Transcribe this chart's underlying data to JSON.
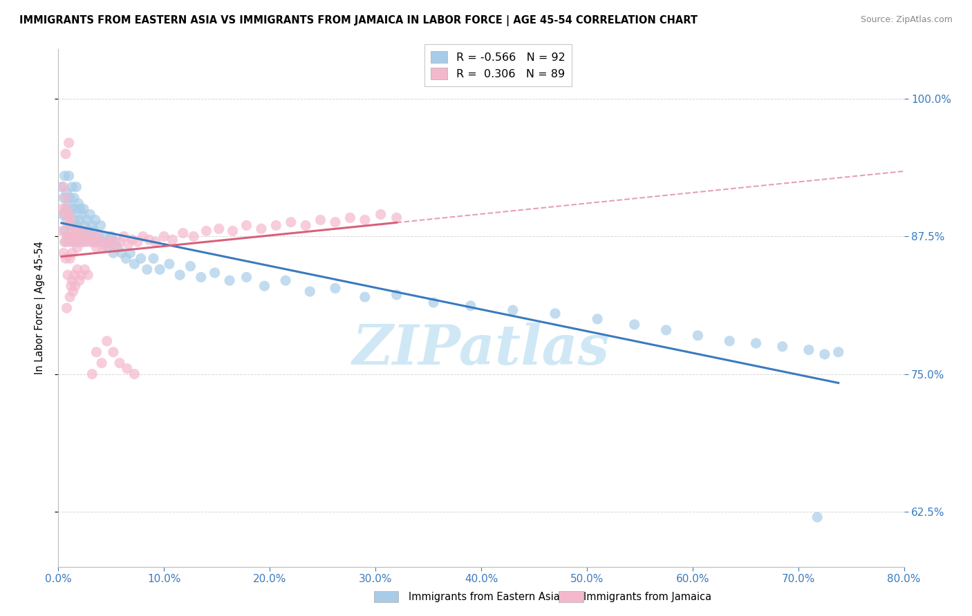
{
  "title": "IMMIGRANTS FROM EASTERN ASIA VS IMMIGRANTS FROM JAMAICA IN LABOR FORCE | AGE 45-54 CORRELATION CHART",
  "source": "Source: ZipAtlas.com",
  "ylabel": "In Labor Force | Age 45-54",
  "legend_label_eastern_asia": "Immigrants from Eastern Asia",
  "legend_label_jamaica": "Immigrants from Jamaica",
  "xlim": [
    0.0,
    0.8
  ],
  "ylim": [
    0.575,
    1.045
  ],
  "r_eastern_asia": -0.566,
  "n_eastern_asia": 92,
  "r_jamaica": 0.306,
  "n_jamaica": 89,
  "color_eastern_asia": "#a8cce8",
  "color_jamaica": "#f4b8cc",
  "trendline_color_eastern_asia": "#3a7abf",
  "trendline_color_jamaica": "#d9607a",
  "watermark": "ZIPatlas",
  "watermark_color": "#d0e8f5",
  "eastern_asia_x": [
    0.003,
    0.004,
    0.005,
    0.006,
    0.006,
    0.007,
    0.007,
    0.008,
    0.008,
    0.009,
    0.01,
    0.01,
    0.011,
    0.011,
    0.012,
    0.012,
    0.013,
    0.013,
    0.014,
    0.014,
    0.015,
    0.015,
    0.016,
    0.016,
    0.017,
    0.018,
    0.018,
    0.019,
    0.02,
    0.02,
    0.021,
    0.022,
    0.022,
    0.023,
    0.024,
    0.025,
    0.026,
    0.027,
    0.028,
    0.03,
    0.031,
    0.032,
    0.033,
    0.034,
    0.035,
    0.036,
    0.038,
    0.04,
    0.042,
    0.044,
    0.046,
    0.048,
    0.05,
    0.052,
    0.054,
    0.056,
    0.06,
    0.064,
    0.068,
    0.072,
    0.078,
    0.084,
    0.09,
    0.096,
    0.105,
    0.115,
    0.125,
    0.135,
    0.148,
    0.162,
    0.178,
    0.195,
    0.215,
    0.238,
    0.262,
    0.29,
    0.32,
    0.355,
    0.39,
    0.43,
    0.47,
    0.51,
    0.545,
    0.575,
    0.605,
    0.635,
    0.66,
    0.685,
    0.71,
    0.725,
    0.738,
    0.718
  ],
  "eastern_asia_y": [
    0.92,
    0.895,
    0.91,
    0.93,
    0.88,
    0.9,
    0.87,
    0.915,
    0.89,
    0.905,
    0.875,
    0.93,
    0.885,
    0.91,
    0.895,
    0.875,
    0.9,
    0.92,
    0.885,
    0.87,
    0.91,
    0.89,
    0.9,
    0.875,
    0.92,
    0.885,
    0.87,
    0.905,
    0.89,
    0.875,
    0.9,
    0.88,
    0.895,
    0.87,
    0.9,
    0.885,
    0.875,
    0.89,
    0.88,
    0.895,
    0.875,
    0.885,
    0.87,
    0.88,
    0.89,
    0.87,
    0.875,
    0.885,
    0.87,
    0.875,
    0.865,
    0.87,
    0.875,
    0.86,
    0.87,
    0.865,
    0.86,
    0.855,
    0.86,
    0.85,
    0.855,
    0.845,
    0.855,
    0.845,
    0.85,
    0.84,
    0.848,
    0.838,
    0.842,
    0.835,
    0.838,
    0.83,
    0.835,
    0.825,
    0.828,
    0.82,
    0.822,
    0.815,
    0.812,
    0.808,
    0.805,
    0.8,
    0.795,
    0.79,
    0.785,
    0.78,
    0.778,
    0.775,
    0.772,
    0.768,
    0.77,
    0.62
  ],
  "jamaica_x": [
    0.003,
    0.004,
    0.005,
    0.005,
    0.006,
    0.006,
    0.007,
    0.007,
    0.008,
    0.008,
    0.009,
    0.01,
    0.01,
    0.011,
    0.011,
    0.012,
    0.013,
    0.013,
    0.014,
    0.015,
    0.016,
    0.017,
    0.018,
    0.019,
    0.02,
    0.022,
    0.024,
    0.026,
    0.028,
    0.03,
    0.032,
    0.034,
    0.036,
    0.038,
    0.04,
    0.042,
    0.045,
    0.048,
    0.051,
    0.054,
    0.058,
    0.062,
    0.066,
    0.07,
    0.075,
    0.08,
    0.086,
    0.092,
    0.1,
    0.108,
    0.118,
    0.128,
    0.14,
    0.152,
    0.165,
    0.178,
    0.192,
    0.206,
    0.22,
    0.234,
    0.248,
    0.262,
    0.276,
    0.29,
    0.305,
    0.32,
    0.007,
    0.008,
    0.009,
    0.01,
    0.011,
    0.012,
    0.013,
    0.014,
    0.015,
    0.016,
    0.018,
    0.02,
    0.022,
    0.025,
    0.028,
    0.032,
    0.036,
    0.041,
    0.046,
    0.052,
    0.058,
    0.065,
    0.072
  ],
  "jamaica_y": [
    0.9,
    0.88,
    0.92,
    0.86,
    0.895,
    0.87,
    0.91,
    0.855,
    0.9,
    0.875,
    0.885,
    0.87,
    0.895,
    0.875,
    0.855,
    0.89,
    0.875,
    0.86,
    0.88,
    0.87,
    0.875,
    0.88,
    0.865,
    0.875,
    0.87,
    0.875,
    0.88,
    0.87,
    0.875,
    0.87,
    0.875,
    0.87,
    0.865,
    0.875,
    0.87,
    0.865,
    0.87,
    0.868,
    0.872,
    0.865,
    0.87,
    0.875,
    0.868,
    0.872,
    0.87,
    0.875,
    0.872,
    0.87,
    0.875,
    0.872,
    0.878,
    0.875,
    0.88,
    0.882,
    0.88,
    0.885,
    0.882,
    0.885,
    0.888,
    0.885,
    0.89,
    0.888,
    0.892,
    0.89,
    0.895,
    0.892,
    0.95,
    0.81,
    0.84,
    0.96,
    0.82,
    0.83,
    0.835,
    0.825,
    0.84,
    0.83,
    0.845,
    0.835,
    0.84,
    0.845,
    0.84,
    0.75,
    0.77,
    0.76,
    0.78,
    0.77,
    0.76,
    0.755,
    0.75
  ]
}
